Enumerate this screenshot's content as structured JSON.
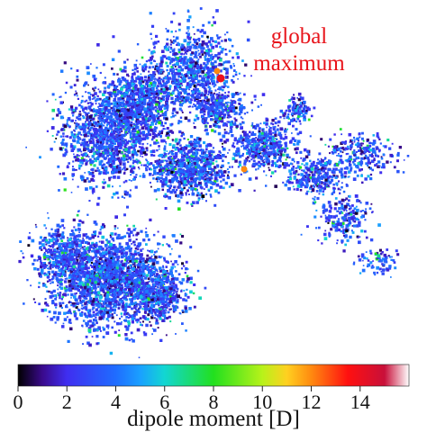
{
  "chart_data": {
    "type": "scatter",
    "description_kind": "embedding map colored by value",
    "annotation": [
      "global",
      "maximum"
    ],
    "colorbar": {
      "label": "dipole moment [D]",
      "min": 0,
      "max": 16,
      "ticks": [
        0,
        2,
        4,
        6,
        8,
        10,
        12,
        14
      ],
      "tick_labels": [
        "0",
        "2",
        "4",
        "6",
        "8",
        "10",
        "12",
        "14"
      ],
      "colormap": [
        {
          "v": 0,
          "c": "#000000"
        },
        {
          "v": 1,
          "c": "#3a0a8c"
        },
        {
          "v": 2,
          "c": "#3f2ef0"
        },
        {
          "v": 4,
          "c": "#1f6cff"
        },
        {
          "v": 5,
          "c": "#1aa0ff"
        },
        {
          "v": 6,
          "c": "#12d6d2"
        },
        {
          "v": 8,
          "c": "#22e01e"
        },
        {
          "v": 10,
          "c": "#b8f21a"
        },
        {
          "v": 11,
          "c": "#ffd020"
        },
        {
          "v": 12,
          "c": "#ff8a10"
        },
        {
          "v": 13.5,
          "c": "#ff1010"
        },
        {
          "v": 15,
          "c": "#c8103a"
        },
        {
          "v": 16,
          "c": "#ffffff"
        }
      ]
    },
    "highlight_points": [
      {
        "name": "global maximum",
        "value": 14
      },
      {
        "name": "high value point",
        "value": 12
      },
      {
        "name": "high value point",
        "value": 12
      }
    ],
    "grid": false,
    "legend": "none"
  }
}
